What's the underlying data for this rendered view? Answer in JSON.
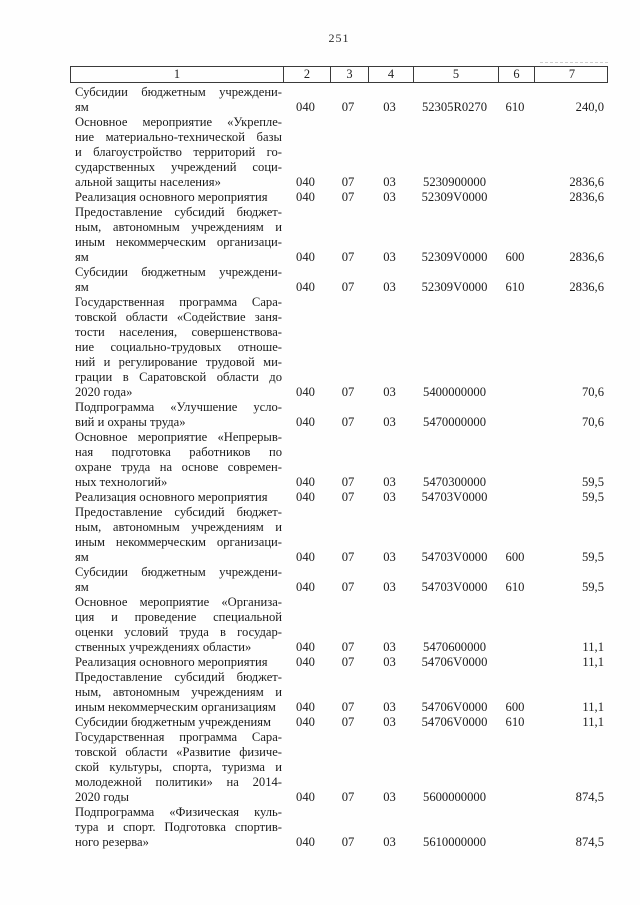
{
  "page": {
    "number": "251"
  },
  "table": {
    "header": [
      "1",
      "2",
      "3",
      "4",
      "5",
      "6",
      "7"
    ],
    "rows": [
      {
        "description_lines": [
          "Субсидии бюджетным учреждени-",
          "ям"
        ],
        "col2": "040",
        "col3": "07",
        "col4": "03",
        "col5": "52305R0270",
        "col6": "610",
        "col7": "240,0"
      },
      {
        "description_lines": [
          "Основное мероприятие «Укрепле-",
          "ние материально-технической базы",
          "и благоустройство территорий го-",
          "сударственных учреждений соци-",
          "альной защиты населения»"
        ],
        "col2": "040",
        "col3": "07",
        "col4": "03",
        "col5": "5230900000",
        "col6": "",
        "col7": "2836,6"
      },
      {
        "description_lines": [
          "Реализация основного мероприятия"
        ],
        "col2": "040",
        "col3": "07",
        "col4": "03",
        "col5": "52309V0000",
        "col6": "",
        "col7": "2836,6"
      },
      {
        "description_lines": [
          "Предоставление субсидий бюджет-",
          "ным, автономным учреждениям и",
          "иным некоммерческим организаци-",
          "ям"
        ],
        "col2": "040",
        "col3": "07",
        "col4": "03",
        "col5": "52309V0000",
        "col6": "600",
        "col7": "2836,6"
      },
      {
        "description_lines": [
          "Субсидии бюджетным учреждени-",
          "ям"
        ],
        "col2": "040",
        "col3": "07",
        "col4": "03",
        "col5": "52309V0000",
        "col6": "610",
        "col7": "2836,6"
      },
      {
        "description_lines": [
          "Государственная программа Сара-",
          "товской области «Содействие заня-",
          "тости населения, совершенствова-",
          "ние социально-трудовых отноше-",
          "ний и регулирование трудовой ми-",
          "грации в Саратовской области до",
          "2020 года»"
        ],
        "col2": "040",
        "col3": "07",
        "col4": "03",
        "col5": "5400000000",
        "col6": "",
        "col7": "70,6"
      },
      {
        "description_lines": [
          "Подпрограмма «Улучшение усло-",
          "вий и охраны труда»"
        ],
        "col2": "040",
        "col3": "07",
        "col4": "03",
        "col5": "5470000000",
        "col6": "",
        "col7": "70,6"
      },
      {
        "description_lines": [
          "Основное мероприятие «Непрерыв-",
          "ная подготовка работников по",
          "охране труда на основе современ-",
          "ных технологий»"
        ],
        "col2": "040",
        "col3": "07",
        "col4": "03",
        "col5": "5470300000",
        "col6": "",
        "col7": "59,5"
      },
      {
        "description_lines": [
          "Реализация основного мероприятия"
        ],
        "col2": "040",
        "col3": "07",
        "col4": "03",
        "col5": "54703V0000",
        "col6": "",
        "col7": "59,5"
      },
      {
        "description_lines": [
          "Предоставление субсидий бюджет-",
          "ным, автономным учреждениям и",
          "иным некоммерческим организаци-",
          "ям"
        ],
        "col2": "040",
        "col3": "07",
        "col4": "03",
        "col5": "54703V0000",
        "col6": "600",
        "col7": "59,5"
      },
      {
        "description_lines": [
          "Субсидии бюджетным учреждени-",
          "ям"
        ],
        "col2": "040",
        "col3": "07",
        "col4": "03",
        "col5": "54703V0000",
        "col6": "610",
        "col7": "59,5"
      },
      {
        "description_lines": [
          "Основное мероприятие «Организа-",
          "ция и проведение специальной",
          "оценки условий труда в государ-",
          "ственных учреждениях области»"
        ],
        "col2": "040",
        "col3": "07",
        "col4": "03",
        "col5": "5470600000",
        "col6": "",
        "col7": "11,1"
      },
      {
        "description_lines": [
          "Реализация основного мероприятия"
        ],
        "col2": "040",
        "col3": "07",
        "col4": "03",
        "col5": "54706V0000",
        "col6": "",
        "col7": "11,1"
      },
      {
        "description_lines": [
          "Предоставление субсидий бюджет-",
          "ным, автономным учреждениям и",
          "иным некоммерческим организациям"
        ],
        "col2": "040",
        "col3": "07",
        "col4": "03",
        "col5": "54706V0000",
        "col6": "600",
        "col7": "11,1"
      },
      {
        "description_lines": [
          "Субсидии бюджетным учреждениям"
        ],
        "col2": "040",
        "col3": "07",
        "col4": "03",
        "col5": "54706V0000",
        "col6": "610",
        "col7": "11,1"
      },
      {
        "description_lines": [
          "Государственная программа Сара-",
          "товской области «Развитие физиче-",
          "ской культуры, спорта, туризма и",
          "молодежной политики» на 2014-",
          "2020 годы"
        ],
        "col2": "040",
        "col3": "07",
        "col4": "03",
        "col5": "5600000000",
        "col6": "",
        "col7": "874,5"
      },
      {
        "description_lines": [
          "Подпрограмма «Физическая куль-",
          "тура и спорт. Подготовка спортив-",
          "ного резерва»"
        ],
        "col2": "040",
        "col3": "07",
        "col4": "03",
        "col5": "5610000000",
        "col6": "",
        "col7": "874,5"
      }
    ]
  }
}
